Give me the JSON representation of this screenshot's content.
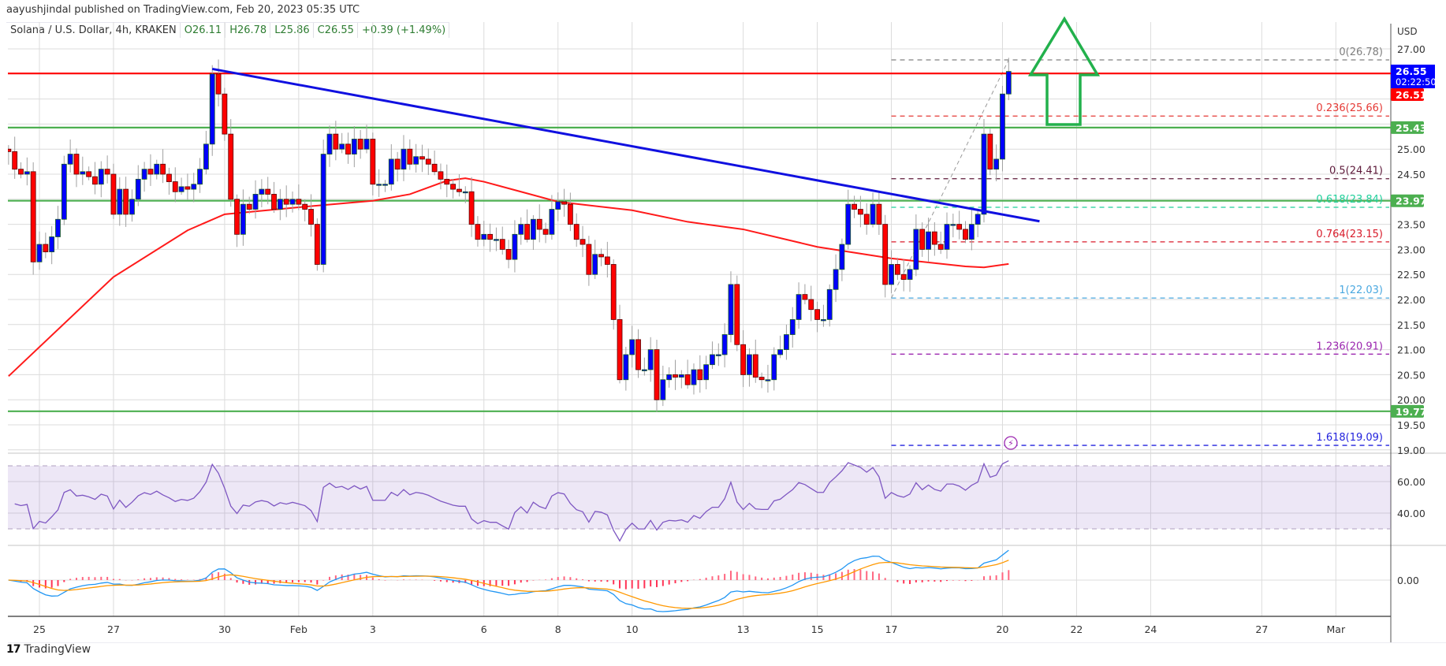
{
  "publisher": "aayushjindal published on TradingView.com, Feb 20, 2023 05:35 UTC",
  "legend": {
    "symbol": "Solana / U.S. Dollar, 4h, KRAKEN",
    "open": "O26.11",
    "high": "H26.78",
    "low": "L25.86",
    "close": "C26.55",
    "change": "+0.39 (+1.49%)"
  },
  "branding": "TradingView",
  "colors": {
    "up": "#0000ff",
    "down": "#ff0000",
    "ma": "#ff1a1a",
    "trendline": "#1010e0",
    "support": "#4caf50",
    "resistance": "#ff0000",
    "arrow": "#22b14c",
    "rsi": "#7e57c2",
    "macd": "#2196f3",
    "signal": "#ff9800"
  },
  "chart_data": {
    "type": "candlestick",
    "title": "Solana / U.S. Dollar, 4h, KRAKEN",
    "currency_label": "USD",
    "ylim": [
      19.0,
      27.2
    ],
    "y_ticks": [
      "27.00",
      "25.00",
      "24.50",
      "23.50",
      "23.00",
      "22.50",
      "22.00",
      "21.50",
      "21.00",
      "20.50",
      "20.00",
      "19.50",
      "19.00"
    ],
    "y_tick_values": [
      27,
      25,
      24.5,
      23.5,
      23,
      22.5,
      22,
      21.5,
      21,
      20.5,
      20,
      19.5,
      19
    ],
    "x_ticks": [
      {
        "label": "25",
        "i": 5
      },
      {
        "label": "27",
        "i": 17
      },
      {
        "label": "30",
        "i": 35
      },
      {
        "label": "Feb",
        "i": 47
      },
      {
        "label": "3",
        "i": 59
      },
      {
        "label": "6",
        "i": 77
      },
      {
        "label": "8",
        "i": 89
      },
      {
        "label": "10",
        "i": 101
      },
      {
        "label": "13",
        "i": 119
      },
      {
        "label": "15",
        "i": 131
      },
      {
        "label": "17",
        "i": 143
      },
      {
        "label": "20",
        "i": 161
      },
      {
        "label": "22",
        "i": 173
      },
      {
        "label": "24",
        "i": 185
      },
      {
        "label": "27",
        "i": 203
      },
      {
        "label": "Mar",
        "i": 215
      }
    ],
    "first_candle": "Jan 24 04:00",
    "interval": "4h",
    "closes": [
      24.95,
      24.6,
      24.5,
      24.55,
      22.75,
      23.1,
      22.95,
      23.25,
      23.6,
      24.7,
      24.9,
      24.5,
      24.55,
      24.45,
      24.3,
      24.6,
      24.5,
      23.7,
      24.2,
      23.7,
      24.0,
      24.4,
      24.6,
      24.5,
      24.7,
      24.5,
      24.35,
      24.15,
      24.25,
      24.2,
      24.3,
      24.6,
      25.1,
      26.5,
      26.1,
      25.3,
      24.0,
      23.3,
      23.9,
      23.8,
      24.1,
      24.2,
      24.1,
      23.8,
      24.0,
      23.9,
      24.0,
      23.9,
      23.8,
      23.5,
      22.7,
      24.9,
      25.3,
      25.0,
      25.1,
      24.9,
      25.2,
      25.0,
      25.2,
      24.3,
      24.3,
      24.3,
      24.8,
      24.6,
      25.0,
      24.7,
      24.85,
      24.8,
      24.7,
      24.55,
      24.4,
      24.3,
      24.2,
      24.15,
      24.15,
      23.5,
      23.2,
      23.3,
      23.2,
      23.2,
      23.0,
      22.8,
      23.3,
      23.5,
      23.2,
      23.6,
      23.4,
      23.3,
      23.8,
      23.95,
      23.9,
      23.5,
      23.2,
      23.1,
      22.5,
      22.9,
      22.85,
      22.7,
      21.6,
      20.4,
      20.9,
      21.2,
      20.6,
      20.6,
      21.0,
      20.0,
      20.4,
      20.5,
      20.45,
      20.5,
      20.3,
      20.6,
      20.4,
      20.7,
      20.9,
      20.9,
      21.3,
      22.3,
      21.1,
      20.5,
      20.9,
      20.45,
      20.4,
      20.4,
      20.9,
      21.0,
      21.3,
      21.6,
      22.1,
      22.0,
      21.8,
      21.6,
      21.6,
      22.2,
      22.6,
      23.1,
      23.9,
      23.8,
      23.7,
      23.5,
      23.9,
      23.5,
      22.3,
      22.7,
      22.5,
      22.4,
      22.6,
      23.4,
      23.0,
      23.35,
      23.1,
      23.0,
      23.5,
      23.5,
      23.4,
      23.2,
      23.5,
      23.7,
      25.3,
      24.6,
      24.8,
      26.1,
      26.55
    ],
    "moving_average": [
      [
        0,
        20.47
      ],
      [
        17,
        22.45
      ],
      [
        29,
        23.38
      ],
      [
        35,
        23.7
      ],
      [
        47,
        23.84
      ],
      [
        59,
        23.97
      ],
      [
        65,
        24.1
      ],
      [
        71,
        24.37
      ],
      [
        74,
        24.42
      ],
      [
        77,
        24.35
      ],
      [
        83,
        24.15
      ],
      [
        89,
        23.95
      ],
      [
        101,
        23.78
      ],
      [
        110,
        23.55
      ],
      [
        119,
        23.4
      ],
      [
        131,
        23.05
      ],
      [
        143,
        22.82
      ],
      [
        155,
        22.66
      ],
      [
        158,
        22.64
      ],
      [
        162,
        22.71
      ]
    ],
    "trendline": {
      "from": [
        33,
        26.6
      ],
      "to": [
        167,
        23.56
      ]
    },
    "horizontal_levels": [
      {
        "price": 26.51,
        "label": "26.51",
        "kind": "resistance"
      },
      {
        "price": 25.43,
        "label": "25.43",
        "kind": "support"
      },
      {
        "price": 23.97,
        "label": "23.97",
        "kind": "support"
      },
      {
        "price": 19.77,
        "label": "19.77",
        "kind": "support"
      }
    ],
    "last_price": {
      "value": "26.55",
      "countdown": "02:22:50",
      "price": 26.55
    },
    "fibonacci": {
      "from": [
        143,
        22.03
      ],
      "to": [
        162,
        26.78
      ],
      "levels": [
        {
          "label": "0(26.78)",
          "price": 26.78,
          "color": "#808080"
        },
        {
          "label": "0.236(25.66)",
          "price": 25.66,
          "color": "#e53935"
        },
        {
          "label": "0.5(24.41)",
          "price": 24.41,
          "color": "#5d1a3a"
        },
        {
          "label": "0.618(23.84)",
          "price": 23.84,
          "color": "#1fcf9a"
        },
        {
          "label": "0.764(23.15)",
          "price": 23.15,
          "color": "#d81b2a"
        },
        {
          "label": "1(22.03)",
          "price": 22.03,
          "color": "#4aa8e0"
        },
        {
          "label": "1.236(20.91)",
          "price": 20.91,
          "color": "#9c27b0"
        },
        {
          "label": "1.618(19.09)",
          "price": 19.09,
          "color": "#2222dd"
        }
      ]
    },
    "rsi": {
      "ticks": [
        "60.00",
        "40.00"
      ],
      "tick_values": [
        60,
        40
      ],
      "band": [
        30,
        70
      ],
      "period": 14
    },
    "macd": {
      "ticks": [
        "0.00"
      ],
      "tick_values": [
        0
      ]
    }
  }
}
